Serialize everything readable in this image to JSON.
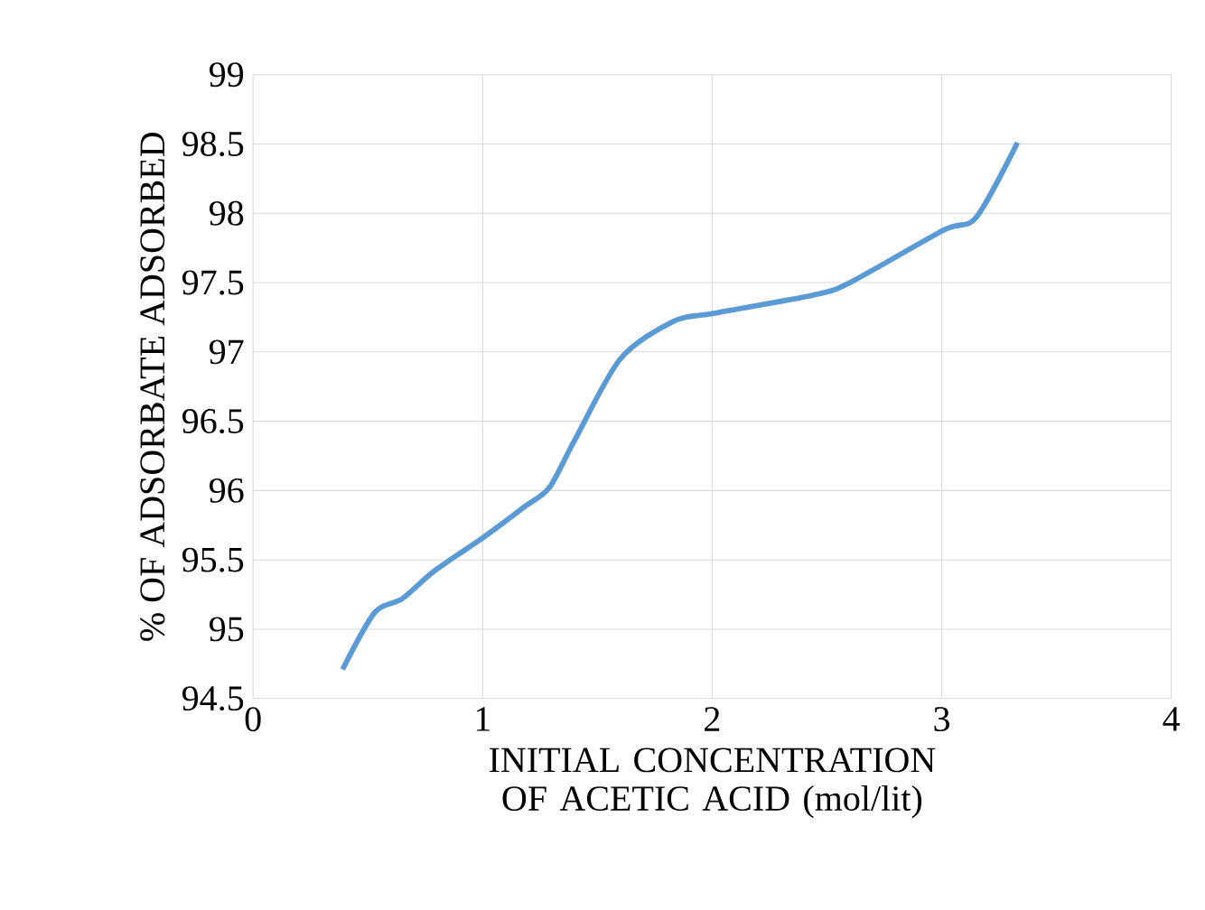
{
  "chart_data": {
    "type": "line",
    "xlabel": "INITIAL CONCENTRATION OF ACETIC ACID  (mol/lit)",
    "ylabel": "%  OF ADSORBATE ADSORBED",
    "x": [
      0.39,
      0.53,
      0.65,
      0.79,
      1.01,
      1.18,
      1.29,
      1.4,
      1.6,
      1.83,
      2.01,
      2.44,
      2.6,
      3.01,
      3.15,
      3.33
    ],
    "values": [
      94.71,
      95.12,
      95.22,
      95.42,
      95.67,
      95.88,
      96.02,
      96.36,
      96.95,
      97.22,
      97.28,
      97.41,
      97.5,
      97.88,
      97.97,
      98.51
    ],
    "color": "#5b9bd5",
    "xlim": [
      0,
      4
    ],
    "xticks": [
      0,
      1,
      2,
      3,
      4
    ],
    "ylim": [
      94.5,
      99
    ],
    "yticks": [
      94.5,
      95,
      95.5,
      96,
      96.5,
      97,
      97.5,
      98,
      98.5,
      99
    ],
    "grid": true,
    "marker": "none",
    "line_style": "solid"
  }
}
